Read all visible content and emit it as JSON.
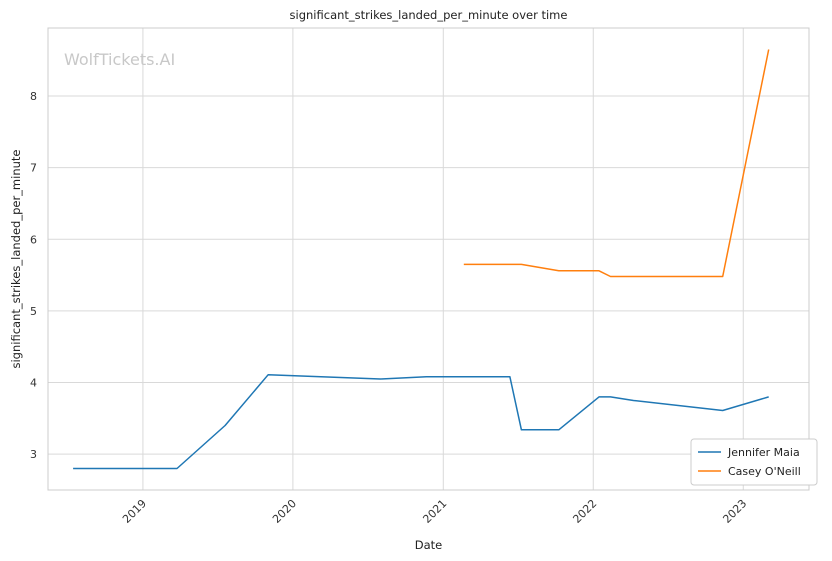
{
  "chart_data": {
    "type": "line",
    "title": "significant_strikes_landed_per_minute over time",
    "xlabel": "Date",
    "ylabel": "significant_strikes_landed_per_minute",
    "watermark": "WolfTickets.AI",
    "x_ticks": [
      "2019",
      "2020",
      "2021",
      "2022",
      "2023"
    ],
    "y_ticks": [
      3,
      4,
      5,
      6,
      7,
      8
    ],
    "xlim": [
      "2018-05-15",
      "2023-06-10"
    ],
    "ylim": [
      2.5,
      8.95
    ],
    "grid": true,
    "legend_position": "lower-right",
    "series": [
      {
        "name": "Jennifer Maia",
        "color": "#1f77b4",
        "points": [
          [
            "2018-07-15",
            2.8
          ],
          [
            "2019-03-25",
            2.8
          ],
          [
            "2019-07-20",
            3.4
          ],
          [
            "2019-11-02",
            4.11
          ],
          [
            "2020-08-01",
            4.05
          ],
          [
            "2020-11-21",
            4.08
          ],
          [
            "2021-06-12",
            4.08
          ],
          [
            "2021-07-10",
            3.34
          ],
          [
            "2021-10-09",
            3.34
          ],
          [
            "2022-01-15",
            3.8
          ],
          [
            "2022-02-12",
            3.8
          ],
          [
            "2022-04-09",
            3.75
          ],
          [
            "2022-11-12",
            3.61
          ],
          [
            "2023-03-04",
            3.8
          ]
        ]
      },
      {
        "name": "Casey O'Neill",
        "color": "#ff7f0e",
        "points": [
          [
            "2021-02-20",
            5.65
          ],
          [
            "2021-07-10",
            5.65
          ],
          [
            "2021-10-09",
            5.56
          ],
          [
            "2022-01-15",
            5.56
          ],
          [
            "2022-02-12",
            5.48
          ],
          [
            "2022-11-12",
            5.48
          ],
          [
            "2023-03-04",
            8.65
          ]
        ]
      }
    ]
  }
}
